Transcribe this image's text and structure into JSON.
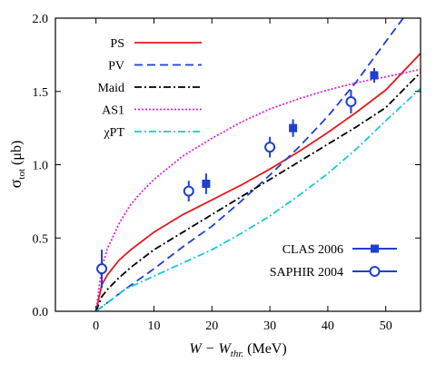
{
  "chart_data": {
    "type": "line",
    "xlabel": "W − W",
    "xlabel_sub": "thr.",
    "xlabel_unit": " (MeV)",
    "ylabel": "σ",
    "ylabel_sub": "tot",
    "ylabel_unit": " (μb)",
    "xlim": [
      -7,
      56
    ],
    "ylim": [
      0,
      2.0
    ],
    "x_ticks": [
      0,
      10,
      20,
      30,
      40,
      50
    ],
    "y_ticks": [
      0,
      0.5,
      1.0,
      1.5,
      2.0
    ],
    "y_tick_labels": [
      "0.0",
      "0.5",
      "1.0",
      "1.5",
      "2.0"
    ],
    "grid": false,
    "legend_placement": "top-left",
    "legend2_placement": "bottom-right",
    "series": [
      {
        "name": "PS",
        "color": "#e31a1c",
        "dash": "solid",
        "x": [
          0,
          1,
          2,
          4,
          6,
          8,
          10,
          15,
          20,
          25,
          30,
          35,
          40,
          45,
          50,
          56
        ],
        "y": [
          0,
          0.18,
          0.25,
          0.35,
          0.42,
          0.48,
          0.54,
          0.66,
          0.76,
          0.86,
          0.97,
          1.09,
          1.22,
          1.36,
          1.51,
          1.76
        ]
      },
      {
        "name": "PV",
        "color": "#1f3fcf",
        "dash": "dashed",
        "x": [
          0,
          5,
          10,
          15,
          20,
          25,
          30,
          35,
          40,
          45,
          50,
          53
        ],
        "y": [
          0,
          0.15,
          0.29,
          0.44,
          0.58,
          0.75,
          0.93,
          1.12,
          1.33,
          1.57,
          1.84,
          2.0
        ]
      },
      {
        "name": "Maid",
        "color": "#000000",
        "dash": "dash-dot",
        "x": [
          0,
          1,
          2,
          4,
          6,
          8,
          10,
          15,
          20,
          25,
          30,
          35,
          40,
          45,
          50,
          56
        ],
        "y": [
          0,
          0.1,
          0.15,
          0.23,
          0.3,
          0.36,
          0.42,
          0.54,
          0.66,
          0.78,
          0.9,
          1.02,
          1.14,
          1.26,
          1.39,
          1.63
        ]
      },
      {
        "name": "AS1",
        "color": "#e020e0",
        "dash": "dotted",
        "x": [
          0,
          1,
          2,
          4,
          6,
          8,
          10,
          15,
          20,
          25,
          30,
          35,
          40,
          45,
          50,
          56
        ],
        "y": [
          0,
          0.3,
          0.43,
          0.6,
          0.73,
          0.82,
          0.9,
          1.06,
          1.18,
          1.29,
          1.38,
          1.45,
          1.51,
          1.56,
          1.6,
          1.65
        ]
      },
      {
        "name": "χPT",
        "color": "#19c8d2",
        "dash": "dash-dot",
        "x": [
          0,
          5,
          10,
          15,
          20,
          25,
          30,
          35,
          40,
          45,
          50,
          56
        ],
        "y": [
          0,
          0.15,
          0.24,
          0.33,
          0.42,
          0.53,
          0.65,
          0.79,
          0.94,
          1.11,
          1.3,
          1.52
        ]
      }
    ],
    "data_sets": [
      {
        "name": "CLAS 2006",
        "marker": "filled-square",
        "color": "#1f3fcf",
        "points": [
          {
            "x": 19,
            "y": 0.87,
            "err": 0.07
          },
          {
            "x": 34,
            "y": 1.25,
            "err": 0.06
          },
          {
            "x": 48,
            "y": 1.61,
            "err": 0.05
          }
        ]
      },
      {
        "name": "SAPHIR 2004",
        "marker": "open-circle",
        "color": "#1f3fcf",
        "points": [
          {
            "x": 1,
            "y": 0.29,
            "err": 0.13
          },
          {
            "x": 16,
            "y": 0.82,
            "err": 0.07
          },
          {
            "x": 30,
            "y": 1.12,
            "err": 0.07
          },
          {
            "x": 44,
            "y": 1.43,
            "err": 0.08
          }
        ]
      }
    ]
  }
}
